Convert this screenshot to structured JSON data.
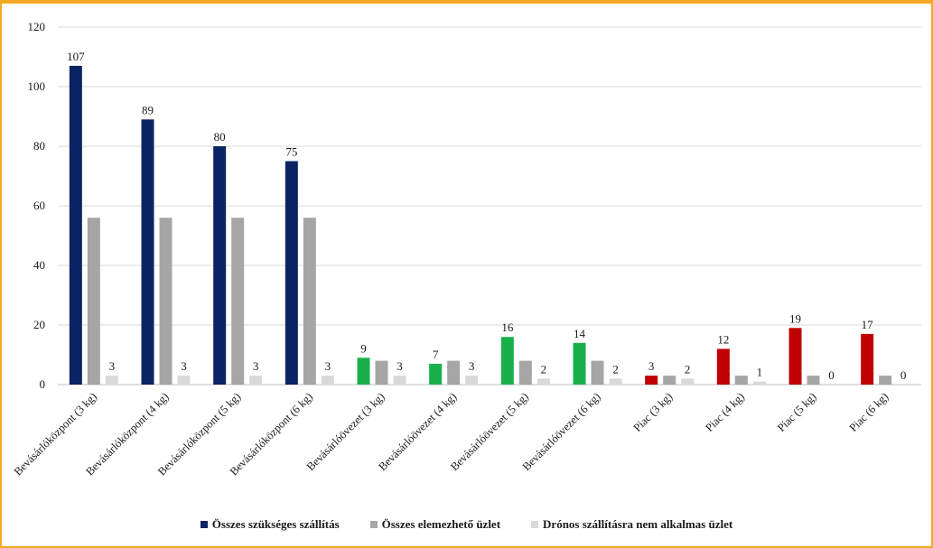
{
  "chart_data": {
    "type": "bar",
    "categories": [
      "Bevásárlóközpont (3 kg)",
      "Bevásárlóközpont (4 kg)",
      "Bevásárlóközpont (5 kg)",
      "Bevásárlóközpont (6 kg)",
      "Bevásárlóövezet (3 kg)",
      "Bevásárlóövezet (4 kg)",
      "Bevásárlóövezet (5 kg)",
      "Bevásárlóövezet (6 kg)",
      "Piac (3 kg)",
      "Piac (4 kg)",
      "Piac (5 kg)",
      "Piac (6 kg)"
    ],
    "series": [
      {
        "name": "Összes szükséges szállítás",
        "values": [
          107,
          89,
          80,
          75,
          9,
          7,
          16,
          14,
          3,
          12,
          19,
          17
        ],
        "colors": [
          "#0b2463",
          "#0b2463",
          "#0b2463",
          "#0b2463",
          "#19b04b",
          "#19b04b",
          "#19b04b",
          "#19b04b",
          "#c00000",
          "#c00000",
          "#c00000",
          "#c00000"
        ],
        "legend_color": "#0b2463",
        "show_labels": true
      },
      {
        "name": "Összes elemezhető üzlet",
        "values": [
          56,
          56,
          56,
          56,
          8,
          8,
          8,
          8,
          3,
          3,
          3,
          3
        ],
        "color": "#a6a6a6",
        "show_labels": false
      },
      {
        "name": "Drónos szállításra nem alkalmas üzlet",
        "values": [
          3,
          3,
          3,
          3,
          3,
          3,
          2,
          2,
          2,
          1,
          0,
          0
        ],
        "color": "#d9d9d9",
        "show_labels": true
      }
    ],
    "ylim": [
      0,
      120
    ],
    "yticks": [
      0,
      20,
      40,
      60,
      80,
      100,
      120
    ],
    "title": "",
    "xlabel": "",
    "ylabel": "",
    "grid": true,
    "legend_position": "bottom"
  }
}
